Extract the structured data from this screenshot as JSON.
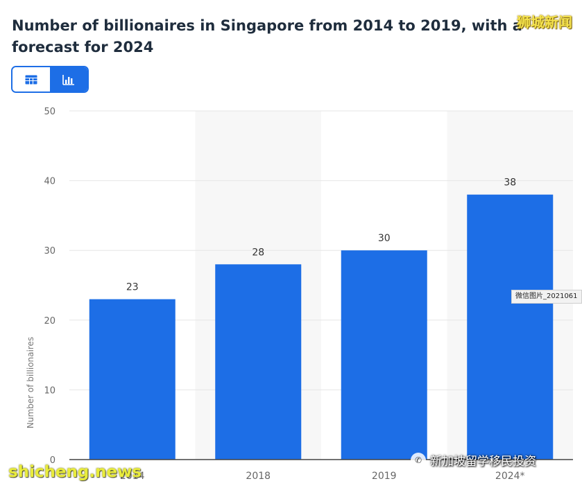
{
  "title": "Number of billionaires in Singapore from 2014 to 2019, with a forecast for 2024",
  "view_toggle": {
    "table_icon": "table-icon",
    "chart_icon": "bar-chart-icon",
    "selected": "chart"
  },
  "chart_data": {
    "type": "bar",
    "categories": [
      "2014",
      "2018",
      "2019",
      "2024*"
    ],
    "values": [
      23,
      28,
      30,
      38
    ],
    "data_labels": [
      "23",
      "28",
      "30",
      "38"
    ],
    "ylabel": "Number of billionaires",
    "xlabel": "",
    "ylim": [
      0,
      50
    ],
    "yticks": [
      0,
      10,
      20,
      30,
      40,
      50
    ],
    "grid": true,
    "shaded_columns": [
      1,
      3
    ],
    "bar_color": "#1d6ee6"
  },
  "watermarks": {
    "top_right": "狮城新闻",
    "bottom_left": "shicheng.news",
    "wechat": "新加坡留学移民投资",
    "tooltip": "微信图片_2021061"
  }
}
